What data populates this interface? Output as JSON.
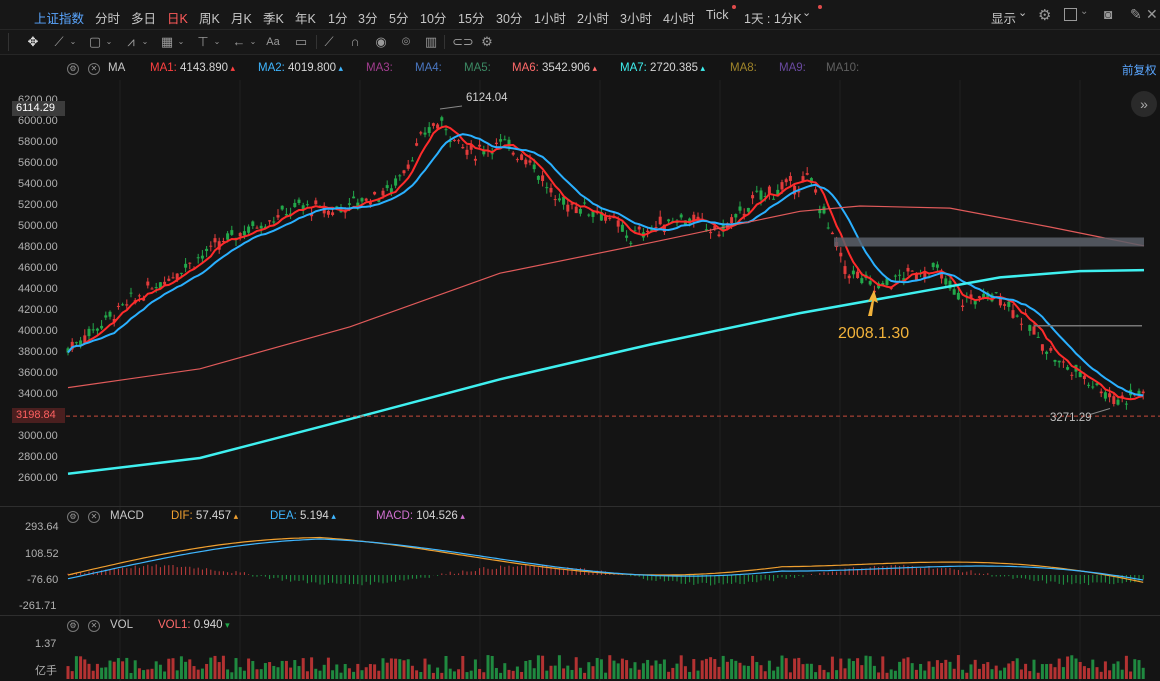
{
  "topbar": {
    "symbol": "上证指数",
    "tabs": [
      "分时",
      "多日",
      "日K",
      "周K",
      "月K",
      "季K",
      "年K",
      "1分",
      "3分",
      "5分",
      "10分",
      "15分",
      "30分",
      "1小时",
      "2小时",
      "3小时",
      "4小时",
      "Tick"
    ],
    "active_tab": "日K",
    "multi_period": "1天 : 1分K",
    "display_label": "显示"
  },
  "main_legend": {
    "indicator": "MA",
    "items": [
      {
        "name": "MA1:",
        "value": "4143.890",
        "color": "#ff4040"
      },
      {
        "name": "MA2:",
        "value": "4019.800",
        "color": "#3fb6ff"
      },
      {
        "name": "MA3:",
        "value": "",
        "color": "#a23d8f"
      },
      {
        "name": "MA4:",
        "value": "",
        "color": "#4a77c2"
      },
      {
        "name": "MA5:",
        "value": "",
        "color": "#3c8a64"
      },
      {
        "name": "MA6:",
        "value": "3542.906",
        "color": "#ff6a6a"
      },
      {
        "name": "MA7:",
        "value": "2720.385",
        "color": "#3ff0f0"
      },
      {
        "name": "MA8:",
        "value": "",
        "color": "#a0852a"
      },
      {
        "name": "MA9:",
        "value": "",
        "color": "#6a4aa0"
      },
      {
        "name": "MA10:",
        "value": "",
        "color": "#606060"
      }
    ],
    "restore": "前复权"
  },
  "price_axis": {
    "labels": [
      "6200.00",
      "6000.00",
      "5800.00",
      "5600.00",
      "5400.00",
      "5200.00",
      "5000.00",
      "4800.00",
      "4600.00",
      "4400.00",
      "4200.00",
      "4000.00",
      "3800.00",
      "3600.00",
      "3400.00",
      "3200.00",
      "3000.00",
      "2800.00",
      "2600.00"
    ],
    "crosshair_value": "6114.29",
    "current_value": "3198.84"
  },
  "annotations": {
    "high": "6124.04",
    "low": "3271.29",
    "date_note": "2008.1.30"
  },
  "macd": {
    "indicator": "MACD",
    "items": [
      {
        "name": "DIF:",
        "value": "57.457",
        "color": "#f0a030"
      },
      {
        "name": "DEA:",
        "value": "5.194",
        "color": "#3fb6ff"
      },
      {
        "name": "MACD:",
        "value": "104.526",
        "color": "#d070d0"
      }
    ],
    "axis": [
      "293.64",
      "108.52",
      "-76.60",
      "-261.71"
    ]
  },
  "vol": {
    "indicator": "VOL",
    "items": [
      {
        "name": "VOL1:",
        "value": "0.940",
        "color": "#ff6a6a"
      }
    ],
    "axis": [
      "1.37",
      "亿手"
    ]
  },
  "colors": {
    "up": "#e23b3b",
    "down": "#22a84a",
    "bg": "#141414"
  }
}
